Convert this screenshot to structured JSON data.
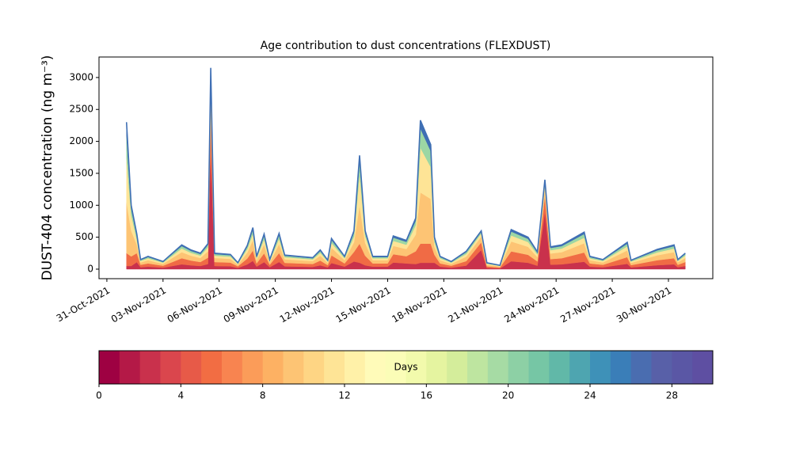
{
  "chart_data": {
    "type": "stacked_area",
    "title": "Age contribution to dust concentrations (FLEXDUST)",
    "y_label": "DUST-404 concentration (ng m⁻³)",
    "x": [
      1.05,
      1.3,
      1.6,
      1.8,
      2.2,
      3.0,
      3.5,
      4.0,
      4.5,
      5.0,
      5.4,
      5.55,
      5.75,
      6.6,
      7.0,
      7.5,
      7.8,
      8.0,
      8.4,
      8.7,
      9.2,
      9.5,
      11.0,
      11.4,
      11.8,
      12.0,
      12.7,
      13.2,
      13.5,
      13.8,
      14.2,
      15.0,
      15.3,
      16.0,
      16.5,
      16.75,
      17.3,
      17.5,
      17.8,
      18.4,
      19.2,
      20.0,
      20.3,
      21.0,
      21.6,
      22.5,
      23.0,
      23.4,
      23.7,
      24.3,
      25.5,
      25.8,
      26.5,
      27.8,
      28.0,
      29.4,
      30.3,
      30.5,
      30.9
    ],
    "series": [
      {
        "color": "#c9314c",
        "values": [
          50,
          50,
          110,
          30,
          40,
          24,
          50,
          76,
          60,
          50,
          80,
          1900,
          50,
          46,
          20,
          74,
          130,
          40,
          110,
          30,
          112,
          44,
          36,
          60,
          28,
          96,
          40,
          120,
          100,
          60,
          40,
          40,
          104,
          90,
          80,
          100,
          100,
          100,
          40,
          24,
          56,
          300,
          20,
          12,
          124,
          100,
          54,
          900,
          70,
          76,
          116,
          40,
          30,
          84,
          28,
          62,
          76,
          30,
          50
        ]
      },
      {
        "color": "#f06b45",
        "values": [
          200,
          150,
          140,
          38,
          50,
          30,
          62,
          95,
          75,
          62,
          100,
          500,
          62,
          57,
          25,
          92,
          162,
          50,
          138,
          38,
          140,
          55,
          45,
          75,
          35,
          120,
          50,
          150,
          300,
          150,
          50,
          50,
          130,
          112,
          200,
          300,
          300,
          125,
          50,
          30,
          70,
          120,
          25,
          15,
          155,
          125,
          67,
          250,
          88,
          95,
          145,
          50,
          38,
          105,
          35,
          78,
          95,
          38,
          62
        ]
      },
      {
        "color": "#fdc474",
        "values": [
          800,
          400,
          135,
          37,
          50,
          30,
          63,
          95,
          75,
          63,
          100,
          300,
          63,
          58,
          25,
          93,
          163,
          50,
          137,
          37,
          140,
          55,
          45,
          75,
          35,
          120,
          50,
          150,
          600,
          200,
          50,
          50,
          130,
          113,
          260,
          800,
          700,
          125,
          50,
          30,
          70,
          90,
          25,
          15,
          155,
          125,
          68,
          120,
          87,
          95,
          145,
          50,
          37,
          105,
          35,
          77,
          95,
          37,
          63
        ]
      },
      {
        "color": "#fee496",
        "values": [
          700,
          250,
          80,
          23,
          30,
          18,
          37,
          57,
          45,
          37,
          60,
          200,
          37,
          35,
          15,
          56,
          98,
          30,
          82,
          23,
          84,
          33,
          27,
          45,
          21,
          72,
          30,
          90,
          500,
          110,
          30,
          30,
          78,
          68,
          150,
          700,
          500,
          75,
          30,
          18,
          42,
          50,
          15,
          9,
          93,
          75,
          41,
          60,
          52,
          57,
          87,
          30,
          23,
          63,
          21,
          46,
          57,
          23,
          37
        ]
      },
      {
        "color": "#9cd7a4",
        "values": [
          350,
          100,
          55,
          15,
          20,
          12,
          25,
          38,
          30,
          25,
          40,
          150,
          25,
          23,
          10,
          37,
          65,
          20,
          55,
          15,
          56,
          22,
          18,
          30,
          14,
          48,
          20,
          60,
          200,
          50,
          20,
          20,
          52,
          45,
          70,
          300,
          250,
          50,
          20,
          12,
          28,
          25,
          10,
          6,
          62,
          50,
          27,
          40,
          35,
          38,
          58,
          20,
          15,
          42,
          14,
          31,
          38,
          15,
          25
        ]
      },
      {
        "color": "#3f6fb4",
        "values": [
          200,
          50,
          30,
          7,
          10,
          6,
          13,
          19,
          15,
          13,
          20,
          100,
          13,
          11,
          5,
          18,
          32,
          10,
          28,
          7,
          28,
          11,
          9,
          15,
          7,
          24,
          10,
          30,
          80,
          30,
          10,
          10,
          26,
          22,
          40,
          130,
          100,
          25,
          10,
          6,
          14,
          15,
          5,
          3,
          31,
          25,
          13,
          30,
          18,
          19,
          29,
          10,
          7,
          21,
          7,
          16,
          19,
          7,
          13
        ]
      }
    ],
    "xlim": [
      -0.42,
      32.37
    ],
    "xticks": [
      {
        "value": 0,
        "label": "31-Oct-2021"
      },
      {
        "value": 3,
        "label": "03-Nov-2021"
      },
      {
        "value": 6,
        "label": "06-Nov-2021"
      },
      {
        "value": 9,
        "label": "09-Nov-2021"
      },
      {
        "value": 12,
        "label": "12-Nov-2021"
      },
      {
        "value": 15,
        "label": "15-Nov-2021"
      },
      {
        "value": 18,
        "label": "18-Nov-2021"
      },
      {
        "value": 21,
        "label": "21-Nov-2021"
      },
      {
        "value": 24,
        "label": "24-Nov-2021"
      },
      {
        "value": 27,
        "label": "27-Nov-2021"
      },
      {
        "value": 30,
        "label": "30-Nov-2021"
      }
    ],
    "ylim": [
      -149,
      3321
    ],
    "yticks": [
      0,
      500,
      1000,
      1500,
      2000,
      2500,
      3000
    ],
    "colorbar": {
      "label": "Days",
      "lim": [
        0,
        30
      ],
      "ticks": [
        0,
        4,
        8,
        12,
        16,
        20,
        24,
        28
      ],
      "colors": [
        "#9e0142",
        "#b41947",
        "#c9314c",
        "#da464d",
        "#e75a48",
        "#f26d43",
        "#f88450",
        "#fb9c59",
        "#fdb163",
        "#fdc474",
        "#fed584",
        "#fee496",
        "#fff1a8",
        "#fffbb9",
        "#fbfdb7",
        "#f2faac",
        "#e5f4a0",
        "#d4ed9b",
        "#bee5a0",
        "#a6dba4",
        "#8dd0a5",
        "#76c6a5",
        "#61b8a8",
        "#4ea5b0",
        "#3e91b8",
        "#3a7eb8",
        "#4a6db0",
        "#5860a8",
        "#5a57a5",
        "#5e4fa2"
      ]
    }
  }
}
